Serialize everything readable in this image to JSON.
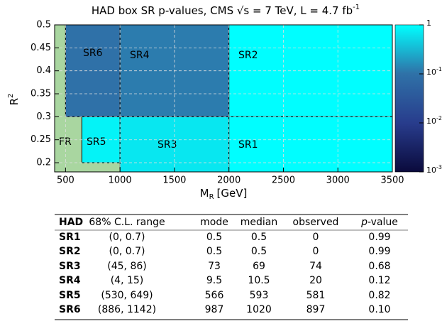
{
  "chart_data": {
    "type": "region-map",
    "title": "HAD box SR p-values, CMS √s = 7 TeV, L = 4.7 fb",
    "title_sup": "-1",
    "xlabel": {
      "main": "M",
      "sub": "R",
      "unit": "[GeV]"
    },
    "ylabel": {
      "main": "R",
      "sup": "2"
    },
    "xlim": [
      400,
      3500
    ],
    "xticks": [
      500,
      1000,
      1500,
      2000,
      2500,
      3000,
      3500
    ],
    "ylim": [
      0.18,
      0.5
    ],
    "yticks": [
      0.2,
      0.25,
      0.3,
      0.35,
      0.4,
      0.45,
      0.5
    ],
    "grid": true,
    "zlog": true,
    "zlim": [
      0.001,
      1
    ],
    "zticks": [
      {
        "value": 0.001,
        "label": "10",
        "exponent": "-3"
      },
      {
        "value": 0.01,
        "label": "10",
        "exponent": "-2"
      },
      {
        "value": 0.1,
        "label": "10",
        "exponent": "-1"
      },
      1
    ],
    "fit_region": {
      "name": "FR",
      "color": "#a9d6a0"
    },
    "regions": [
      {
        "name": "SR6",
        "x": [
          500,
          1000
        ],
        "y": [
          0.3,
          0.5
        ],
        "p_value": 0.1
      },
      {
        "name": "SR4",
        "x": [
          1000,
          2000
        ],
        "y": [
          0.3,
          0.5
        ],
        "p_value": 0.12
      },
      {
        "name": "SR2",
        "x": [
          2000,
          3500
        ],
        "y": [
          0.3,
          0.5
        ],
        "p_value": 0.99
      },
      {
        "name": "SR5",
        "x": [
          650,
          1000
        ],
        "y": [
          0.2,
          0.3
        ],
        "p_value": 0.82
      },
      {
        "name": "SR3",
        "x": [
          1000,
          2000
        ],
        "y": [
          0.18,
          0.3
        ],
        "p_value": 0.68
      },
      {
        "name": "SR1",
        "x": [
          2000,
          3500
        ],
        "y": [
          0.18,
          0.3
        ],
        "p_value": 0.99
      }
    ]
  },
  "table": {
    "header": [
      "HAD",
      "68% C.L. range",
      "mode",
      "median",
      "observed",
      "p",
      "-value"
    ],
    "rows": [
      [
        "SR1",
        "(0, 0.7)",
        "0.5",
        "0.5",
        "0",
        "0.99"
      ],
      [
        "SR2",
        "(0, 0.7)",
        "0.5",
        "0.5",
        "0",
        "0.99"
      ],
      [
        "SR3",
        "(45, 86)",
        "73",
        "69",
        "74",
        "0.68"
      ],
      [
        "SR4",
        "(4, 15)",
        "9.5",
        "10.5",
        "20",
        "0.12"
      ],
      [
        "SR5",
        "(530, 649)",
        "566",
        "593",
        "581",
        "0.82"
      ],
      [
        "SR6",
        "(886, 1142)",
        "987",
        "1020",
        "897",
        "0.10"
      ]
    ]
  }
}
